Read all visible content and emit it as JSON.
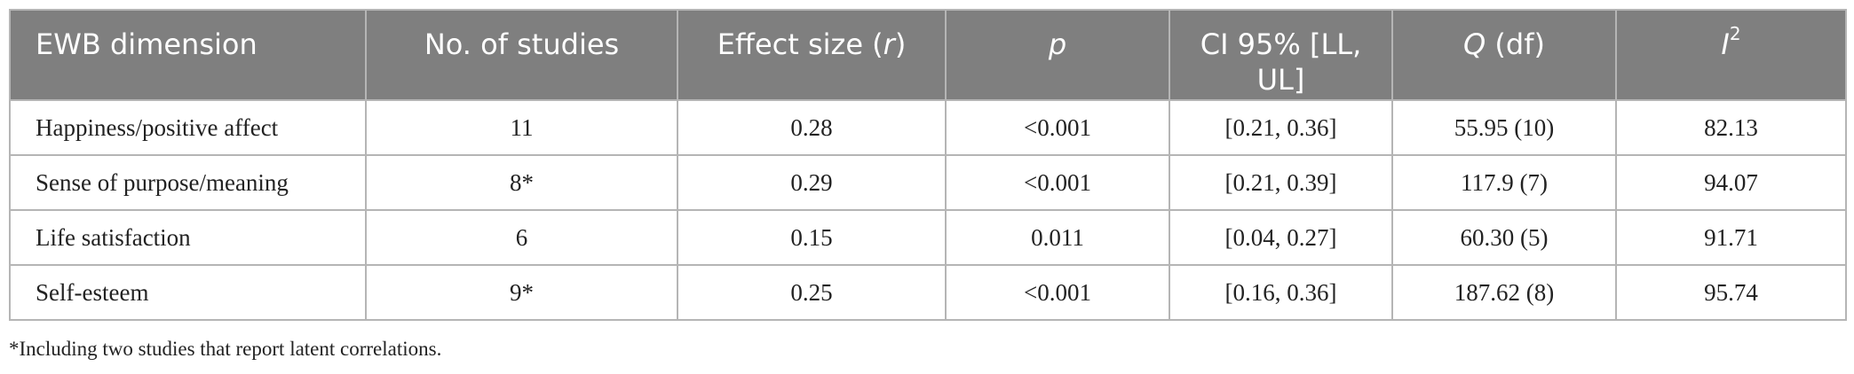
{
  "table": {
    "headers": {
      "dimension": "EWB dimension",
      "studies": "No. of studies",
      "effect_prefix": "Effect size (",
      "effect_var": "r",
      "effect_suffix": ")",
      "p": "p",
      "ci": "CI 95% [LL, UL]",
      "q_var": "Q",
      "q_suffix": " (df)",
      "i2_var": "I",
      "i2_sup": "2"
    },
    "rows": [
      {
        "dimension": "Happiness/positive affect",
        "studies": "11",
        "effect": "0.28",
        "p": "<0.001",
        "ci": "[0.21, 0.36]",
        "q": "55.95 (10)",
        "i2": "82.13"
      },
      {
        "dimension": "Sense of purpose/meaning",
        "studies": "8*",
        "effect": "0.29",
        "p": "<0.001",
        "ci": "[0.21, 0.39]",
        "q": "117.9 (7)",
        "i2": "94.07"
      },
      {
        "dimension": "Life satisfaction",
        "studies": "6",
        "effect": "0.15",
        "p": "0.011",
        "ci": "[0.04, 0.27]",
        "q": "60.30 (5)",
        "i2": "91.71"
      },
      {
        "dimension": "Self-esteem",
        "studies": "9*",
        "effect": "0.25",
        "p": "<0.001",
        "ci": "[0.16, 0.36]",
        "q": "187.62 (8)",
        "i2": "95.74"
      }
    ]
  },
  "footnote": "*Including two studies that report latent correlations."
}
